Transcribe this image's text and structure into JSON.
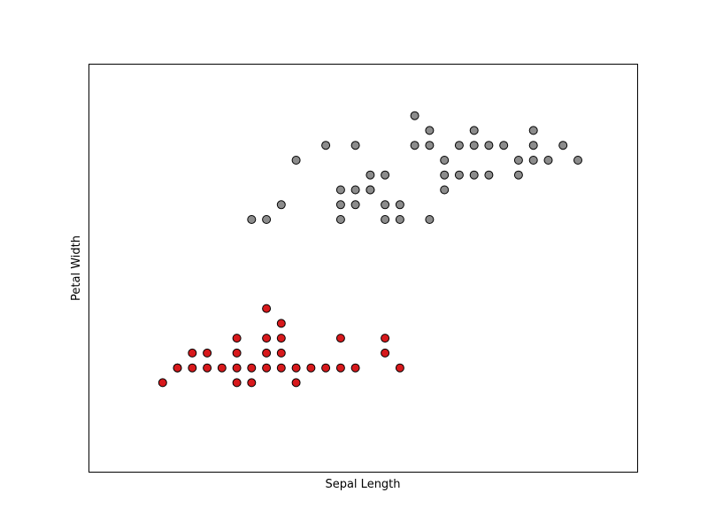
{
  "chart_data": {
    "type": "scatter",
    "title": "",
    "xlabel": "Sepal Length",
    "ylabel": "Petal Width",
    "xlim": [
      4.0,
      7.7
    ],
    "ylim": [
      -0.4,
      2.35
    ],
    "grid": false,
    "legend": "none",
    "ticks_visible": false,
    "series": [
      {
        "color": "#d7191c",
        "points": [
          [
            4.5,
            0.2
          ],
          [
            4.6,
            0.3
          ],
          [
            4.6,
            0.3
          ],
          [
            4.7,
            0.4
          ],
          [
            4.7,
            0.3
          ],
          [
            4.8,
            0.4
          ],
          [
            4.8,
            0.3
          ],
          [
            4.9,
            0.3
          ],
          [
            5.0,
            0.5
          ],
          [
            5.0,
            0.4
          ],
          [
            5.0,
            0.3
          ],
          [
            5.0,
            0.2
          ],
          [
            5.1,
            0.3
          ],
          [
            5.1,
            0.2
          ],
          [
            5.2,
            0.7
          ],
          [
            5.2,
            0.5
          ],
          [
            5.2,
            0.3
          ],
          [
            5.2,
            0.4
          ],
          [
            5.3,
            0.6
          ],
          [
            5.3,
            0.5
          ],
          [
            5.3,
            0.4
          ],
          [
            5.3,
            0.3
          ],
          [
            5.4,
            0.3
          ],
          [
            5.4,
            0.2
          ],
          [
            5.5,
            0.3
          ],
          [
            5.6,
            0.3
          ],
          [
            5.7,
            0.5
          ],
          [
            5.7,
            0.3
          ],
          [
            5.8,
            0.3
          ],
          [
            6.0,
            0.5
          ],
          [
            6.0,
            0.4
          ],
          [
            6.1,
            0.3
          ]
        ]
      },
      {
        "color": "#8c8c8c",
        "points": [
          [
            5.1,
            1.3
          ],
          [
            5.2,
            1.3
          ],
          [
            5.3,
            1.4
          ],
          [
            5.4,
            1.7
          ],
          [
            5.6,
            1.8
          ],
          [
            5.7,
            1.5
          ],
          [
            5.7,
            1.4
          ],
          [
            5.7,
            1.3
          ],
          [
            5.8,
            1.8
          ],
          [
            5.8,
            1.5
          ],
          [
            5.8,
            1.4
          ],
          [
            5.9,
            1.5
          ],
          [
            5.9,
            1.5
          ],
          [
            5.9,
            1.6
          ],
          [
            6.0,
            1.6
          ],
          [
            6.0,
            1.4
          ],
          [
            6.0,
            1.3
          ],
          [
            6.1,
            1.4
          ],
          [
            6.1,
            1.3
          ],
          [
            6.2,
            2.0
          ],
          [
            6.2,
            1.8
          ],
          [
            6.3,
            1.9
          ],
          [
            6.3,
            1.8
          ],
          [
            6.3,
            1.3
          ],
          [
            6.4,
            1.7
          ],
          [
            6.4,
            1.6
          ],
          [
            6.4,
            1.5
          ],
          [
            6.5,
            1.8
          ],
          [
            6.5,
            1.6
          ],
          [
            6.6,
            1.9
          ],
          [
            6.6,
            1.8
          ],
          [
            6.6,
            1.6
          ],
          [
            6.7,
            1.8
          ],
          [
            6.7,
            1.6
          ],
          [
            6.8,
            1.8
          ],
          [
            6.9,
            1.7
          ],
          [
            6.9,
            1.6
          ],
          [
            7.0,
            1.9
          ],
          [
            7.0,
            1.8
          ],
          [
            7.0,
            1.7
          ],
          [
            7.1,
            1.7
          ],
          [
            7.2,
            1.8
          ],
          [
            7.3,
            1.7
          ]
        ]
      }
    ]
  }
}
